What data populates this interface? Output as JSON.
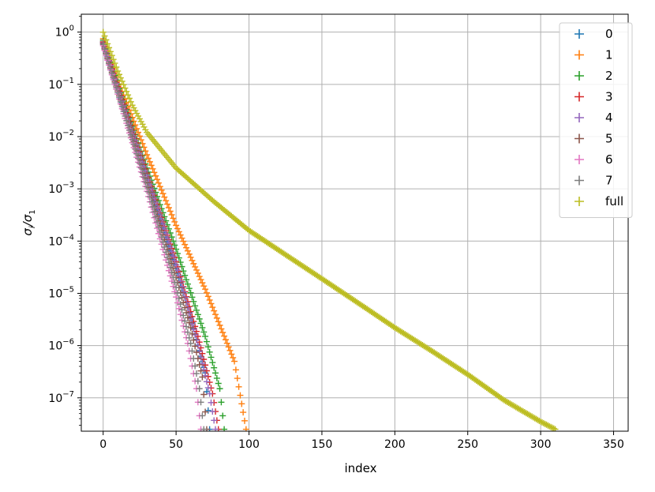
{
  "chart_data": {
    "type": "scatter",
    "marker": "+",
    "xlabel": "index",
    "ylabel": "σ_i/σ_1",
    "ylabel_main": "σ",
    "ylabel_sub1": "i",
    "ylabel_sep": "/σ",
    "ylabel_sub2": "1",
    "xlim": [
      -15,
      360
    ],
    "ylim": [
      2.3e-08,
      2.2
    ],
    "y_scale": "log",
    "grid": true,
    "legend_position": "top-right",
    "x_ticks": [
      0,
      50,
      100,
      150,
      200,
      250,
      300,
      350
    ],
    "y_ticks": [
      {
        "base": "10",
        "exp": "0",
        "value": 1
      },
      {
        "base": "10",
        "exp": "−1",
        "value": 0.1
      },
      {
        "base": "10",
        "exp": "−2",
        "value": 0.01
      },
      {
        "base": "10",
        "exp": "−3",
        "value": 0.001
      },
      {
        "base": "10",
        "exp": "−4",
        "value": 0.0001
      },
      {
        "base": "10",
        "exp": "−5",
        "value": 1e-05
      },
      {
        "base": "10",
        "exp": "−6",
        "value": 1e-06
      },
      {
        "base": "10",
        "exp": "−7",
        "value": 1e-07
      }
    ],
    "series": [
      {
        "name": "0",
        "color": "#1f77b4",
        "points": [
          [
            0,
            0.65
          ],
          [
            10,
            0.08
          ],
          [
            30,
            0.0016
          ],
          [
            50,
            3e-05
          ],
          [
            60,
            3.5e-06
          ],
          [
            70,
            3e-07
          ],
          [
            73,
            2.5e-08
          ]
        ]
      },
      {
        "name": "1",
        "color": "#ff7f0e",
        "points": [
          [
            0,
            0.75
          ],
          [
            10,
            0.12
          ],
          [
            30,
            0.0045
          ],
          [
            50,
            0.0002
          ],
          [
            70,
            1.2e-05
          ],
          [
            90,
            5e-07
          ],
          [
            98,
            2.5e-08
          ]
        ]
      },
      {
        "name": "2",
        "color": "#2ca02c",
        "points": [
          [
            0,
            0.7
          ],
          [
            10,
            0.1
          ],
          [
            30,
            0.0025
          ],
          [
            50,
            7e-05
          ],
          [
            70,
            1.5e-06
          ],
          [
            80,
            1.5e-07
          ],
          [
            83,
            2.5e-08
          ]
        ]
      },
      {
        "name": "3",
        "color": "#d62728",
        "points": [
          [
            0,
            0.65
          ],
          [
            10,
            0.09
          ],
          [
            30,
            0.002
          ],
          [
            50,
            4e-05
          ],
          [
            65,
            1.5e-06
          ],
          [
            75,
            1.2e-07
          ],
          [
            79,
            2.5e-08
          ]
        ]
      },
      {
        "name": "4",
        "color": "#9467bd",
        "points": [
          [
            0,
            0.62
          ],
          [
            10,
            0.085
          ],
          [
            30,
            0.0018
          ],
          [
            50,
            3.5e-05
          ],
          [
            65,
            1e-06
          ],
          [
            73,
            1.2e-07
          ],
          [
            77,
            2.5e-08
          ]
        ]
      },
      {
        "name": "5",
        "color": "#8c564b",
        "points": [
          [
            0,
            0.6
          ],
          [
            10,
            0.075
          ],
          [
            30,
            0.0013
          ],
          [
            50,
            2e-05
          ],
          [
            60,
            2.2e-06
          ],
          [
            68,
            2.5e-07
          ],
          [
            71,
            2.5e-08
          ]
        ]
      },
      {
        "name": "6",
        "color": "#e377c2",
        "points": [
          [
            0,
            0.55
          ],
          [
            10,
            0.065
          ],
          [
            30,
            0.0009
          ],
          [
            50,
            8.5e-06
          ],
          [
            58,
            1.1e-06
          ],
          [
            64,
            1.5e-07
          ],
          [
            67,
            2.5e-08
          ]
        ]
      },
      {
        "name": "7",
        "color": "#7f7f7f",
        "points": [
          [
            0,
            0.58
          ],
          [
            10,
            0.07
          ],
          [
            30,
            0.0011
          ],
          [
            50,
            1.3e-05
          ],
          [
            60,
            1.1e-06
          ],
          [
            66,
            1.5e-07
          ],
          [
            69,
            2.5e-08
          ]
        ]
      },
      {
        "name": "full",
        "color": "#bcbd22",
        "points": [
          [
            0,
            1.0
          ],
          [
            10,
            0.18
          ],
          [
            20,
            0.04
          ],
          [
            30,
            0.012
          ],
          [
            50,
            0.0025
          ],
          [
            75,
            0.0006
          ],
          [
            100,
            0.00016
          ],
          [
            125,
            5.5e-05
          ],
          [
            150,
            1.9e-05
          ],
          [
            175,
            6.5e-06
          ],
          [
            200,
            2.2e-06
          ],
          [
            225,
            8e-07
          ],
          [
            250,
            2.8e-07
          ],
          [
            275,
            9e-08
          ],
          [
            300,
            3.5e-08
          ],
          [
            310,
            2.5e-08
          ]
        ]
      }
    ]
  }
}
